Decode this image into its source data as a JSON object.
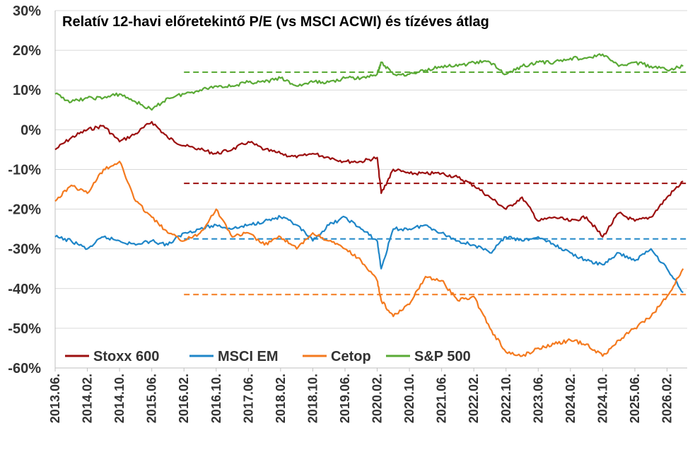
{
  "chart_data": {
    "type": "line",
    "title": "Relatív 12-havi előretekintő P/E (vs MSCI ACWI) és tízéves átlag",
    "xlabel": "",
    "ylabel": "",
    "ylim": [
      -60,
      30
    ],
    "xlim": [
      "2013-06",
      "2026-07"
    ],
    "y_ticks": [
      "30%",
      "20%",
      "10%",
      "0%",
      "-10%",
      "-20%",
      "-30%",
      "-40%",
      "-50%",
      "-60%"
    ],
    "y_tick_values": [
      30,
      20,
      10,
      0,
      -10,
      -20,
      -30,
      -40,
      -50,
      -60
    ],
    "x_ticks": [
      "2013.06.",
      "2014.02.",
      "2014.10.",
      "2015.06.",
      "2016.02.",
      "2016.10.",
      "2017.06.",
      "2018.02.",
      "2018.10.",
      "2019.06.",
      "2020.02.",
      "2020.10.",
      "2021.06.",
      "2022.02.",
      "2022.10.",
      "2023.06.",
      "2024.02.",
      "2024.10.",
      "2025.06.",
      "2026.02."
    ],
    "grid": "horizontal",
    "legend_position": "bottom-left",
    "series": [
      {
        "name": "Stoxx 600",
        "color": "#9c0f0f",
        "x": [
          "2013-06",
          "2013-10",
          "2014-02",
          "2014-06",
          "2014-10",
          "2015-02",
          "2015-06",
          "2015-10",
          "2016-02",
          "2016-06",
          "2016-10",
          "2017-02",
          "2017-06",
          "2017-10",
          "2018-02",
          "2018-06",
          "2018-10",
          "2019-02",
          "2019-06",
          "2019-10",
          "2020-02",
          "2020-03",
          "2020-06",
          "2020-10",
          "2021-02",
          "2021-06",
          "2021-10",
          "2022-02",
          "2022-06",
          "2022-10",
          "2023-02",
          "2023-06",
          "2023-10",
          "2024-02",
          "2024-06",
          "2024-10",
          "2025-02",
          "2025-06",
          "2025-10",
          "2026-02",
          "2026-06"
        ],
        "values": [
          -5,
          -2,
          0,
          1,
          -3,
          -1,
          2,
          -2,
          -4,
          -5,
          -6,
          -5,
          -3,
          -5,
          -6,
          -7,
          -6,
          -7,
          -8,
          -8,
          -7,
          -16,
          -10,
          -11,
          -11,
          -11,
          -12,
          -14,
          -17,
          -20,
          -17,
          -23,
          -22,
          -23,
          -22,
          -27,
          -21,
          -23,
          -22,
          -17,
          -13
        ]
      },
      {
        "name": "MSCI EM",
        "color": "#1f86c8",
        "x": [
          "2013-06",
          "2013-10",
          "2014-02",
          "2014-06",
          "2014-10",
          "2015-02",
          "2015-06",
          "2015-10",
          "2016-02",
          "2016-06",
          "2016-10",
          "2017-02",
          "2017-06",
          "2017-10",
          "2018-02",
          "2018-06",
          "2018-10",
          "2019-02",
          "2019-06",
          "2019-10",
          "2020-02",
          "2020-03",
          "2020-06",
          "2020-10",
          "2021-02",
          "2021-06",
          "2021-10",
          "2022-02",
          "2022-06",
          "2022-10",
          "2023-02",
          "2023-06",
          "2023-10",
          "2024-02",
          "2024-06",
          "2024-10",
          "2025-02",
          "2025-06",
          "2025-10",
          "2026-02",
          "2026-06"
        ],
        "values": [
          -27,
          -28,
          -30,
          -27,
          -28,
          -29,
          -28,
          -29,
          -26,
          -25,
          -24,
          -25,
          -24,
          -23,
          -22,
          -24,
          -28,
          -24,
          -22,
          -25,
          -28,
          -35,
          -25,
          -25,
          -24,
          -26,
          -28,
          -29,
          -31,
          -27,
          -28,
          -27,
          -29,
          -31,
          -33,
          -34,
          -31,
          -33,
          -30,
          -35,
          -41
        ]
      },
      {
        "name": "Cetop",
        "color": "#f47a1f",
        "x": [
          "2013-06",
          "2013-10",
          "2014-02",
          "2014-06",
          "2014-10",
          "2015-02",
          "2015-06",
          "2015-10",
          "2016-02",
          "2016-06",
          "2016-10",
          "2017-02",
          "2017-06",
          "2017-10",
          "2018-02",
          "2018-06",
          "2018-10",
          "2019-02",
          "2019-06",
          "2019-10",
          "2020-02",
          "2020-03",
          "2020-06",
          "2020-10",
          "2021-02",
          "2021-06",
          "2021-10",
          "2022-02",
          "2022-06",
          "2022-10",
          "2023-02",
          "2023-06",
          "2023-10",
          "2024-02",
          "2024-06",
          "2024-10",
          "2025-02",
          "2025-06",
          "2025-10",
          "2026-02",
          "2026-06"
        ],
        "values": [
          -18,
          -14,
          -16,
          -10,
          -8,
          -18,
          -22,
          -26,
          -28,
          -26,
          -20,
          -27,
          -26,
          -29,
          -27,
          -30,
          -26,
          -28,
          -30,
          -33,
          -38,
          -43,
          -47,
          -44,
          -37,
          -38,
          -43,
          -42,
          -50,
          -56,
          -57,
          -55,
          -54,
          -53,
          -54,
          -57,
          -53,
          -50,
          -47,
          -42,
          -35
        ]
      },
      {
        "name": "S&P 500",
        "color": "#5aaa36",
        "x": [
          "2013-06",
          "2013-10",
          "2014-02",
          "2014-06",
          "2014-10",
          "2015-02",
          "2015-06",
          "2015-10",
          "2016-02",
          "2016-06",
          "2016-10",
          "2017-02",
          "2017-06",
          "2017-10",
          "2018-02",
          "2018-06",
          "2018-10",
          "2019-02",
          "2019-06",
          "2019-10",
          "2020-02",
          "2020-03",
          "2020-06",
          "2020-10",
          "2021-02",
          "2021-06",
          "2021-10",
          "2022-02",
          "2022-06",
          "2022-10",
          "2023-02",
          "2023-06",
          "2023-10",
          "2024-02",
          "2024-06",
          "2024-10",
          "2025-02",
          "2025-06",
          "2025-10",
          "2026-02",
          "2026-06"
        ],
        "values": [
          9,
          7,
          8,
          8,
          9,
          7,
          5,
          8,
          9,
          10,
          11,
          11,
          12,
          12,
          13,
          11,
          12,
          12,
          13,
          13,
          14,
          17,
          14,
          14,
          15,
          16,
          16,
          17,
          17,
          14,
          16,
          17,
          17,
          18,
          18,
          19,
          16,
          17,
          16,
          15,
          16
        ]
      }
    ],
    "averages": [
      {
        "name": "Stoxx 600",
        "color": "#9c0f0f",
        "value": -13.5,
        "x_start": "2016-02"
      },
      {
        "name": "MSCI EM",
        "color": "#1f86c8",
        "value": -27.5,
        "x_start": "2016-02"
      },
      {
        "name": "Cetop",
        "color": "#f47a1f",
        "value": -41.5,
        "x_start": "2016-02"
      },
      {
        "name": "S&P 500",
        "color": "#5aaa36",
        "value": 14.5,
        "x_start": "2016-02"
      }
    ]
  },
  "colors": {
    "grid": "#d9d9d9",
    "axis": "#bfbfbf"
  }
}
